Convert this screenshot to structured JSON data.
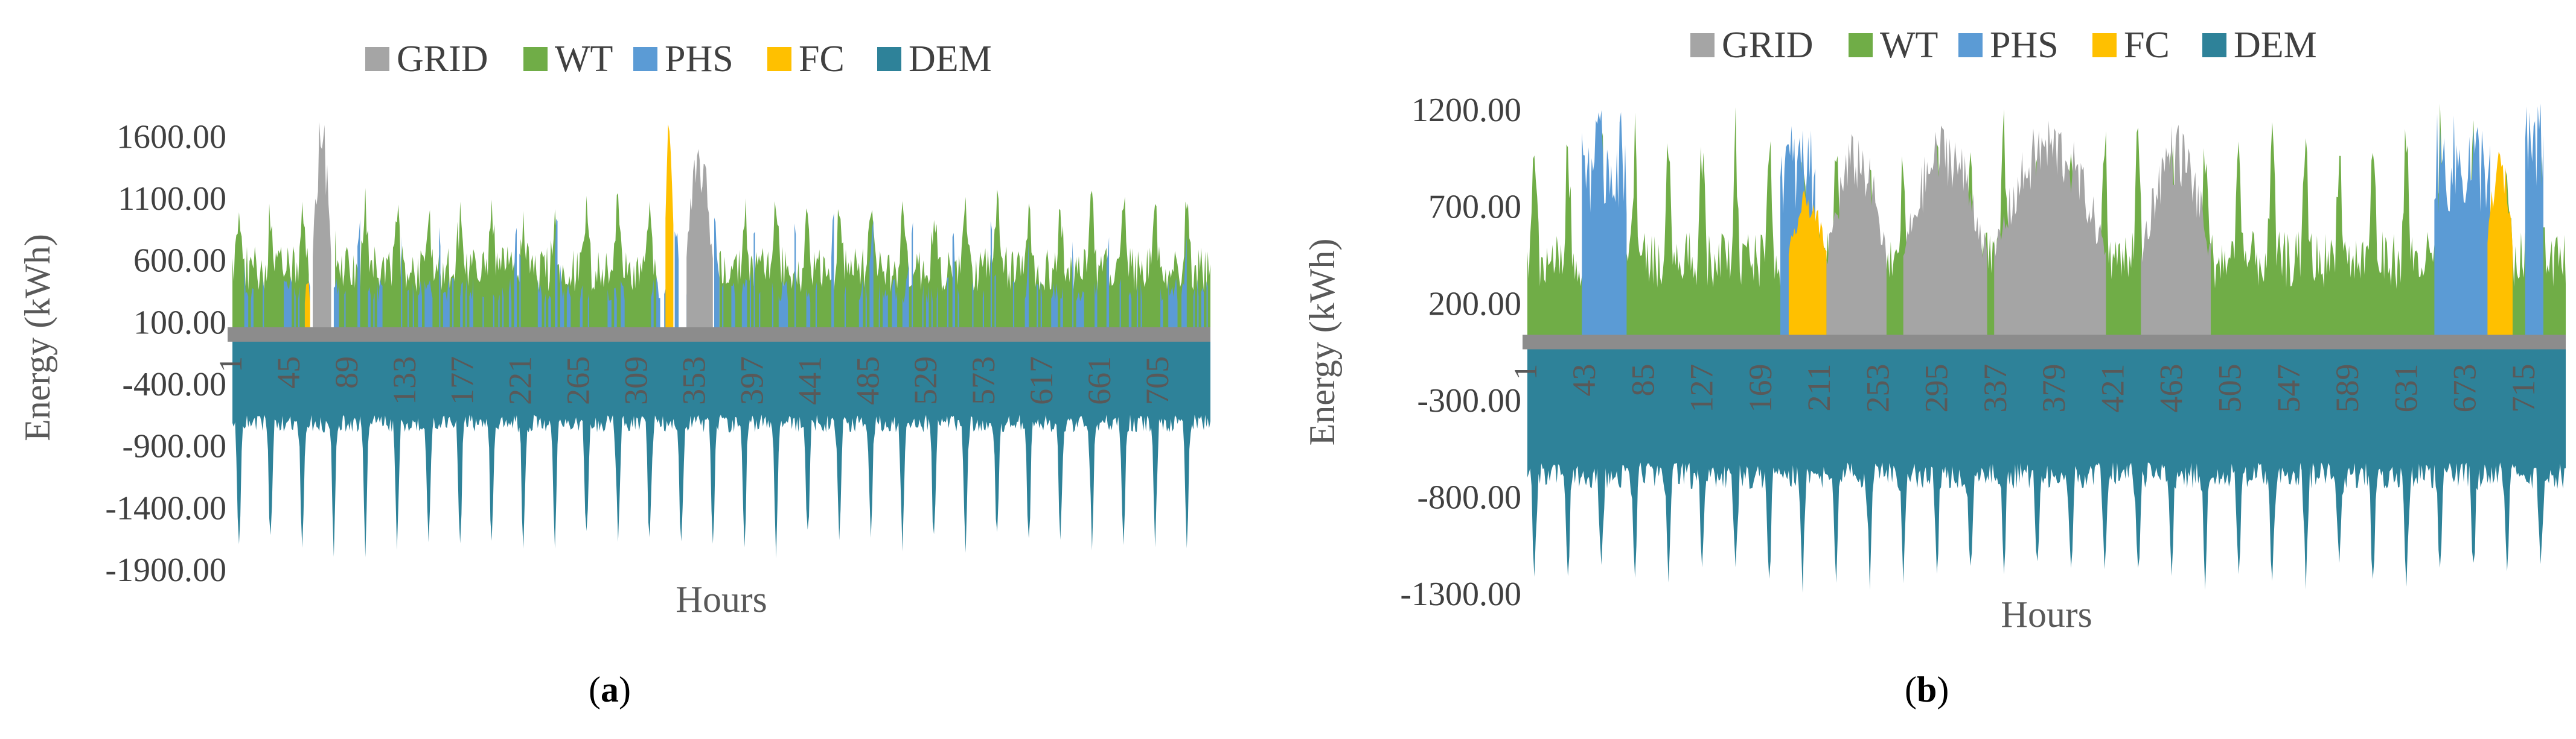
{
  "figure": {
    "panels": [
      {
        "caption_letter": "a",
        "legend_position": "top"
      },
      {
        "caption_letter": "b",
        "legend_position": "top"
      }
    ]
  },
  "chart_data": [
    {
      "type": "area",
      "title": "",
      "xlabel": "Hours",
      "ylabel": "Energy (kWh)",
      "ylim": [
        -1900,
        1850
      ],
      "xlim": [
        1,
        744
      ],
      "y_ticks": [
        "1600.00",
        "1100.00",
        "600.00",
        "100.00",
        "-400.00",
        "-900.00",
        "-1400.00",
        "-1900.00"
      ],
      "y_tick_values": [
        1600,
        1100,
        600,
        100,
        -400,
        -900,
        -1400,
        -1900
      ],
      "x_ticks": [
        "1",
        "45",
        "89",
        "133",
        "177",
        "221",
        "265",
        "309",
        "353",
        "397",
        "441",
        "485",
        "529",
        "573",
        "617",
        "661",
        "705"
      ],
      "x_tick_values": [
        1,
        45,
        89,
        133,
        177,
        221,
        265,
        309,
        353,
        397,
        441,
        485,
        529,
        573,
        617,
        661,
        705
      ],
      "grid": false,
      "colors": {
        "GRID": "#a5a5a5",
        "WT": "#70ad47",
        "PHS": "#5b9bd5",
        "FC": "#ffc000",
        "DEM": "#2e8299"
      },
      "series": [
        {
          "name": "GRID",
          "segments": [
            {
              "x0": 62,
              "x1": 76,
              "peak": 1820
            },
            {
              "x0": 346,
              "x1": 366,
              "peak": 1600
            }
          ]
        },
        {
          "name": "WT",
          "base": 620,
          "amplitude": 1180,
          "period": 24,
          "gaps": [
            [
              60,
              78
            ],
            [
              325,
              370
            ]
          ]
        },
        {
          "name": "PHS",
          "base": 420,
          "amplitude": 550,
          "period": 30
        },
        {
          "name": "FC",
          "segments": [
            {
              "x0": 56,
              "x1": 60,
              "peak": 500
            },
            {
              "x0": 330,
              "x1": 336,
              "peak": 1820
            }
          ]
        },
        {
          "name": "DEM",
          "base": -720,
          "trough": -1780,
          "period": 24
        }
      ]
    },
    {
      "type": "area",
      "title": "",
      "xlabel": "Hours",
      "ylabel": "Energy (kWh)",
      "ylim": [
        -1300,
        1300
      ],
      "xlim": [
        1,
        744
      ],
      "y_ticks": [
        "1200.00",
        "700.00",
        "200.00",
        "-300.00",
        "-800.00",
        "-1300.00"
      ],
      "y_tick_values": [
        1200,
        700,
        200,
        -300,
        -800,
        -1300
      ],
      "x_ticks": [
        "1",
        "43",
        "85",
        "127",
        "169",
        "211",
        "253",
        "295",
        "337",
        "379",
        "421",
        "463",
        "505",
        "547",
        "589",
        "631",
        "673",
        "715"
      ],
      "x_tick_values": [
        1,
        43,
        85,
        127,
        169,
        211,
        253,
        295,
        337,
        379,
        421,
        463,
        505,
        547,
        589,
        631,
        673,
        715
      ],
      "grid": false,
      "colors": {
        "GRID": "#a5a5a5",
        "WT": "#70ad47",
        "PHS": "#5b9bd5",
        "FC": "#ffc000",
        "DEM": "#2e8299"
      },
      "series": [
        {
          "name": "GRID",
          "segments": [
            {
              "x0": 215,
              "x1": 258,
              "peak": 1100
            },
            {
              "x0": 270,
              "x1": 330,
              "peak": 1150
            },
            {
              "x0": 335,
              "x1": 415,
              "peak": 1180
            },
            {
              "x0": 440,
              "x1": 490,
              "peak": 1150
            }
          ]
        },
        {
          "name": "WT",
          "base": 500,
          "amplitude": 1200,
          "period": 24
        },
        {
          "name": "PHS",
          "segments": [
            {
              "x0": 40,
              "x1": 72,
              "peak": 1200
            },
            {
              "x0": 182,
              "x1": 207,
              "peak": 1150
            },
            {
              "x0": 650,
              "x1": 690,
              "peak": 1180
            },
            {
              "x0": 715,
              "x1": 728,
              "peak": 1250
            }
          ]
        },
        {
          "name": "FC",
          "segments": [
            {
              "x0": 188,
              "x1": 215,
              "peak": 800
            },
            {
              "x0": 688,
              "x1": 706,
              "peak": 1000
            }
          ]
        },
        {
          "name": "DEM",
          "base": -690,
          "trough": -1250,
          "period": 24
        }
      ]
    }
  ]
}
